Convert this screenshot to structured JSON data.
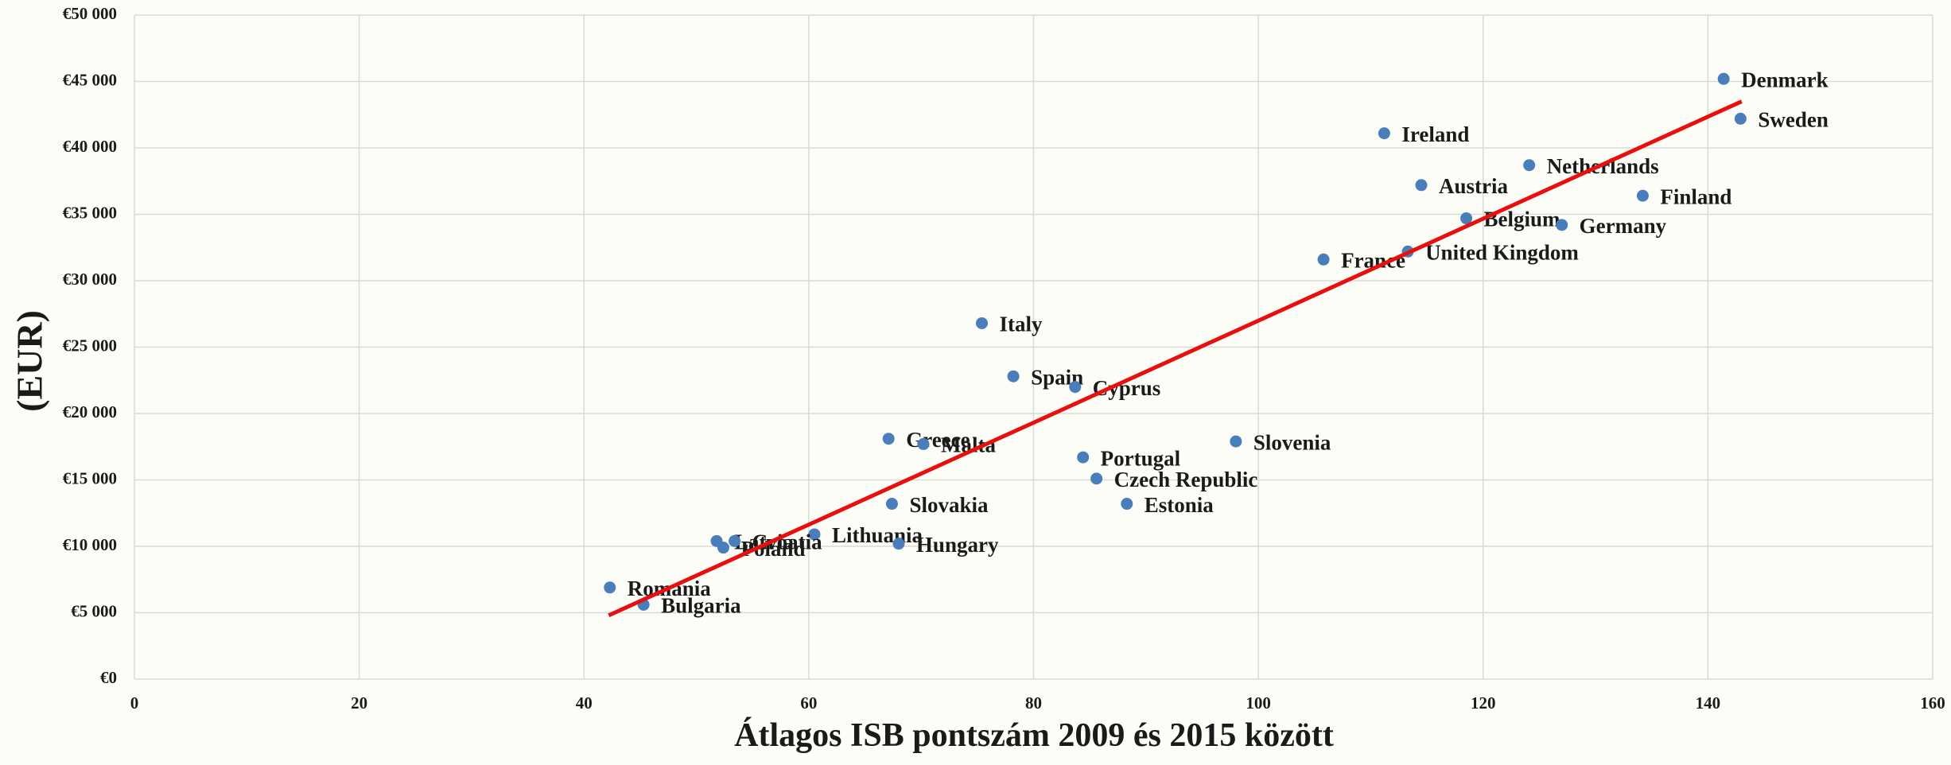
{
  "chart_data": {
    "type": "scatter",
    "xlabel": "Átlagos ISB pontszám 2009 és 2015 között",
    "ylabel": "(EUR)",
    "x": [
      141.4,
      142.9,
      111.2,
      124.1,
      114.5,
      134.2,
      118.5,
      127.0,
      113.3,
      105.8,
      75.4,
      78.2,
      83.7,
      67.1,
      70.2,
      98.0,
      84.4,
      85.6,
      88.3,
      67.4,
      60.5,
      51.8,
      53.4,
      52.4,
      68.0,
      42.3,
      45.3
    ],
    "values": [
      45200,
      42200,
      41100,
      38700,
      37200,
      36400,
      34700,
      34200,
      32200,
      31600,
      26800,
      22800,
      22000,
      18100,
      17700,
      17900,
      16700,
      15100,
      13200,
      13200,
      10900,
      10400,
      10400,
      9900,
      10200,
      6900,
      5600
    ],
    "point_labels": [
      "Denmark",
      "Sweden",
      "Ireland",
      "Netherlands",
      "Austria",
      "Finland",
      "Belgium",
      "Germany",
      "United Kingdom",
      "France",
      "Italy",
      "Spain",
      "Cyprus",
      "Greece",
      "Malta",
      "Slovenia",
      "Portugal",
      "Czech Republic",
      "Estonia",
      "Slovakia",
      "Lithuania",
      "Latvia",
      "Croatia",
      "Poland",
      "Hungary",
      "Romania",
      "Bulgaria"
    ],
    "color": "#4a7ebb",
    "trendline": {
      "x": [
        42.2,
        143
      ],
      "values": [
        4800,
        43500
      ],
      "color": "#e8100f"
    },
    "xlim": [
      0,
      160
    ],
    "xticks": [
      0,
      20,
      40,
      60,
      80,
      100,
      120,
      140,
      160
    ],
    "ylim": [
      0,
      50000
    ],
    "yticks": [
      {
        "value": 0,
        "label": "€0"
      },
      {
        "value": 5000,
        "label": "€5 000"
      },
      {
        "value": 10000,
        "label": "€10 000"
      },
      {
        "value": 15000,
        "label": "€15 000"
      },
      {
        "value": 20000,
        "label": "€20 000"
      },
      {
        "value": 25000,
        "label": "€25 000"
      },
      {
        "value": 30000,
        "label": "€30 000"
      },
      {
        "value": 35000,
        "label": "€35 000"
      },
      {
        "value": 40000,
        "label": "€40 000"
      },
      {
        "value": 45000,
        "label": "€45 000"
      },
      {
        "value": 50000,
        "label": "€50 000"
      }
    ],
    "grid": true
  }
}
